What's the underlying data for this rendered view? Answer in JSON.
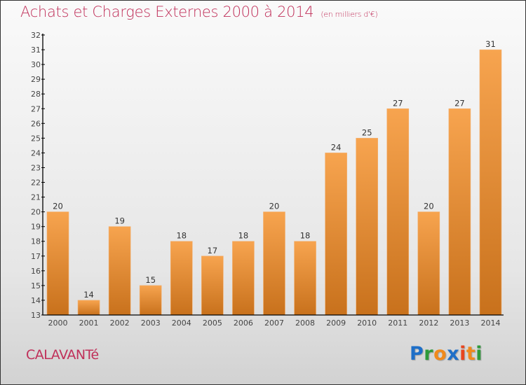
{
  "title": "Achats et Charges Externes 2000 à 2014",
  "subtitle": "(en milliers d'€)",
  "commune": "CALAVANTé",
  "logo": {
    "letters": [
      "P",
      "r",
      "o",
      "x",
      "i",
      "t",
      "i"
    ],
    "colors": [
      "#1e6fc8",
      "#2e9a3a",
      "#f08a1c",
      "#1e6fc8",
      "#e8461f",
      "#f08a1c",
      "#2e9a3a"
    ]
  },
  "chart_data": {
    "type": "bar",
    "title": "Achats et Charges Externes 2000 à 2014",
    "subtitle": "(en milliers d'€)",
    "xlabel": "",
    "ylabel": "",
    "categories": [
      "2000",
      "2001",
      "2002",
      "2003",
      "2004",
      "2005",
      "2006",
      "2007",
      "2008",
      "2009",
      "2010",
      "2011",
      "2012",
      "2013",
      "2014"
    ],
    "values": [
      20,
      14,
      19,
      15,
      18,
      17,
      18,
      20,
      18,
      24,
      25,
      27,
      20,
      27,
      31
    ],
    "ylim": [
      13,
      32
    ],
    "yticks": [
      13,
      14,
      15,
      16,
      17,
      18,
      19,
      20,
      21,
      22,
      23,
      24,
      25,
      26,
      27,
      28,
      29,
      30,
      31,
      32
    ],
    "grid": false,
    "data_labels": true,
    "bar_color_top": "#f7a44f",
    "bar_color_bottom": "#c8711c"
  }
}
